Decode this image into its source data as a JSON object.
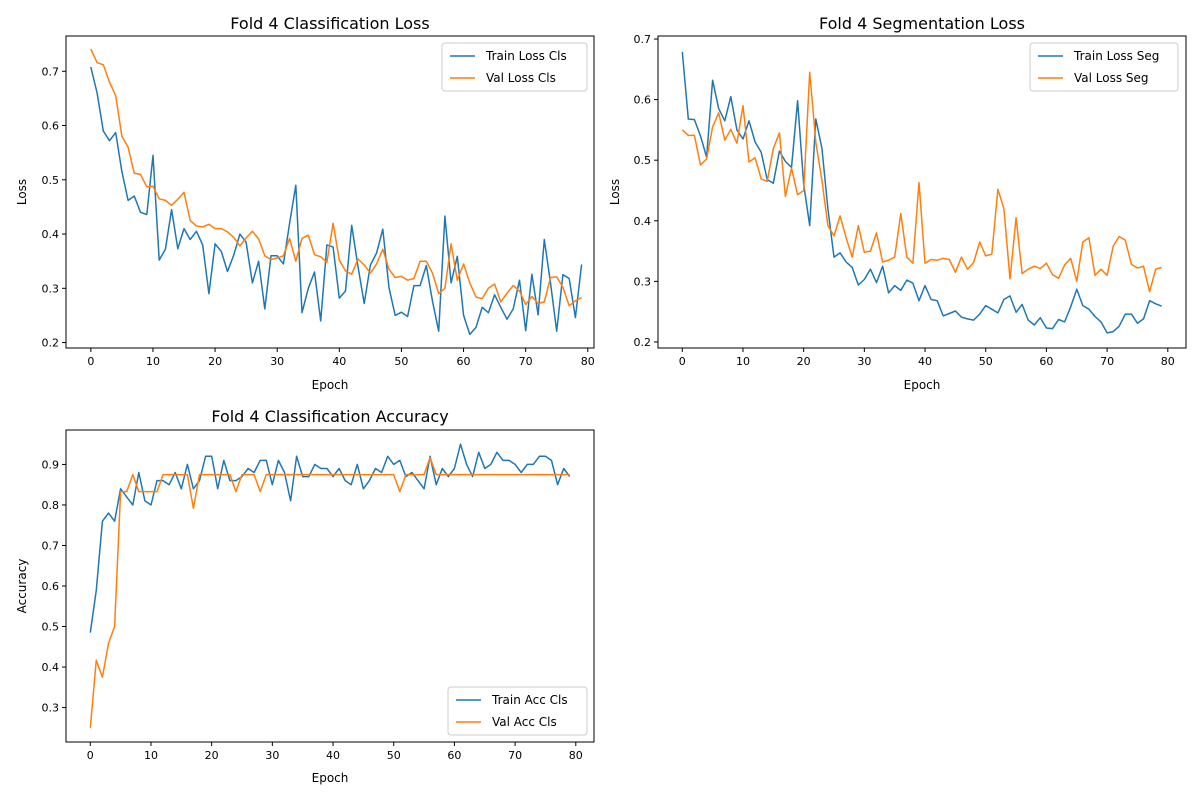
{
  "chart_data": [
    {
      "type": "line",
      "title": "Fold 4 Classification Loss",
      "xlabel": "Epoch",
      "ylabel": "Loss",
      "xlim": [
        -4,
        81
      ],
      "ylim": [
        0.19,
        0.765
      ],
      "xticks": [
        0,
        10,
        20,
        30,
        40,
        50,
        60,
        70,
        80
      ],
      "yticks": [
        0.2,
        0.3,
        0.4,
        0.5,
        0.6,
        0.7
      ],
      "ytick_format": "1",
      "grid": false,
      "legend_position": "upper right",
      "series": [
        {
          "name": "Train Loss Cls",
          "color": "#1f77b4",
          "values": [
            0.708,
            0.66,
            0.59,
            0.572,
            0.587,
            0.515,
            0.462,
            0.47,
            0.44,
            0.436,
            0.545,
            0.352,
            0.372,
            0.445,
            0.373,
            0.41,
            0.39,
            0.405,
            0.38,
            0.29,
            0.382,
            0.368,
            0.331,
            0.361,
            0.4,
            0.385,
            0.31,
            0.35,
            0.262,
            0.36,
            0.36,
            0.345,
            0.42,
            0.49,
            0.255,
            0.3,
            0.33,
            0.24,
            0.38,
            0.376,
            0.282,
            0.295,
            0.416,
            0.34,
            0.272,
            0.343,
            0.365,
            0.409,
            0.301,
            0.25,
            0.256,
            0.248,
            0.305,
            0.305,
            0.342,
            0.276,
            0.221,
            0.433,
            0.31,
            0.359,
            0.25,
            0.215,
            0.228,
            0.265,
            0.255,
            0.288,
            0.265,
            0.243,
            0.262,
            0.315,
            0.222,
            0.326,
            0.251,
            0.39,
            0.31,
            0.221,
            0.325,
            0.318,
            0.246,
            0.344
          ]
        },
        {
          "name": "Val Loss Cls",
          "color": "#ff7f0e",
          "values": [
            0.741,
            0.716,
            0.712,
            0.68,
            0.655,
            0.58,
            0.56,
            0.512,
            0.51,
            0.487,
            0.488,
            0.465,
            0.462,
            0.453,
            0.464,
            0.477,
            0.425,
            0.415,
            0.413,
            0.418,
            0.41,
            0.41,
            0.404,
            0.394,
            0.378,
            0.393,
            0.405,
            0.391,
            0.36,
            0.353,
            0.356,
            0.36,
            0.392,
            0.35,
            0.392,
            0.398,
            0.362,
            0.358,
            0.348,
            0.42,
            0.352,
            0.332,
            0.326,
            0.354,
            0.343,
            0.328,
            0.345,
            0.372,
            0.335,
            0.32,
            0.322,
            0.315,
            0.318,
            0.35,
            0.35,
            0.328,
            0.29,
            0.3,
            0.382,
            0.315,
            0.345,
            0.31,
            0.284,
            0.281,
            0.3,
            0.308,
            0.275,
            0.291,
            0.305,
            0.295,
            0.27,
            0.285,
            0.272,
            0.275,
            0.32,
            0.321,
            0.302,
            0.268,
            0.277,
            0.283
          ]
        }
      ]
    },
    {
      "type": "line",
      "title": "Fold 4 Segmentation Loss",
      "xlabel": "Epoch",
      "ylabel": "Loss",
      "xlim": [
        -4,
        83
      ],
      "ylim": [
        0.19,
        0.705
      ],
      "xticks": [
        0,
        10,
        20,
        30,
        40,
        50,
        60,
        70,
        80
      ],
      "yticks": [
        0.2,
        0.3,
        0.4,
        0.5,
        0.6,
        0.7
      ],
      "ytick_format": "1",
      "grid": false,
      "legend_position": "upper right",
      "series": [
        {
          "name": "Train Loss Seg",
          "color": "#1f77b4",
          "values": [
            0.679,
            0.568,
            0.567,
            0.54,
            0.505,
            0.632,
            0.585,
            0.565,
            0.605,
            0.55,
            0.535,
            0.565,
            0.53,
            0.513,
            0.468,
            0.462,
            0.515,
            0.498,
            0.488,
            0.598,
            0.46,
            0.392,
            0.568,
            0.52,
            0.42,
            0.34,
            0.347,
            0.332,
            0.323,
            0.294,
            0.303,
            0.32,
            0.298,
            0.325,
            0.281,
            0.293,
            0.285,
            0.302,
            0.297,
            0.268,
            0.293,
            0.27,
            0.268,
            0.243,
            0.247,
            0.251,
            0.241,
            0.238,
            0.236,
            0.246,
            0.26,
            0.254,
            0.248,
            0.27,
            0.276,
            0.249,
            0.262,
            0.236,
            0.228,
            0.24,
            0.223,
            0.222,
            0.237,
            0.233,
            0.258,
            0.287,
            0.26,
            0.254,
            0.242,
            0.233,
            0.215,
            0.217,
            0.226,
            0.246,
            0.246,
            0.231,
            0.238,
            0.268,
            0.263,
            0.259
          ]
        },
        {
          "name": "Val Loss Seg",
          "color": "#ff7f0e",
          "values": [
            0.55,
            0.541,
            0.541,
            0.492,
            0.502,
            0.555,
            0.578,
            0.533,
            0.551,
            0.528,
            0.59,
            0.497,
            0.504,
            0.469,
            0.465,
            0.519,
            0.545,
            0.44,
            0.487,
            0.443,
            0.45,
            0.645,
            0.53,
            0.467,
            0.392,
            0.375,
            0.408,
            0.372,
            0.34,
            0.392,
            0.348,
            0.35,
            0.38,
            0.332,
            0.335,
            0.34,
            0.412,
            0.34,
            0.33,
            0.463,
            0.33,
            0.336,
            0.335,
            0.338,
            0.336,
            0.315,
            0.34,
            0.32,
            0.331,
            0.365,
            0.342,
            0.345,
            0.452,
            0.42,
            0.304,
            0.405,
            0.313,
            0.32,
            0.325,
            0.321,
            0.33,
            0.311,
            0.305,
            0.327,
            0.338,
            0.3,
            0.365,
            0.372,
            0.31,
            0.32,
            0.31,
            0.358,
            0.374,
            0.368,
            0.328,
            0.322,
            0.325,
            0.283,
            0.32,
            0.323
          ]
        }
      ]
    },
    {
      "type": "line",
      "title": "Fold 4 Classification Accuracy",
      "xlabel": "Epoch",
      "ylabel": "Accuracy",
      "xlim": [
        -4,
        83
      ],
      "ylim": [
        0.215,
        0.985
      ],
      "xticks": [
        0,
        10,
        20,
        30,
        40,
        50,
        60,
        70,
        80
      ],
      "yticks": [
        0.3,
        0.4,
        0.5,
        0.6,
        0.7,
        0.8,
        0.9
      ],
      "ytick_format": "1",
      "grid": false,
      "legend_position": "lower right",
      "series": [
        {
          "name": "Train Acc Cls",
          "color": "#1f77b4",
          "values": [
            0.485,
            0.59,
            0.76,
            0.78,
            0.76,
            0.84,
            0.82,
            0.8,
            0.88,
            0.81,
            0.8,
            0.86,
            0.86,
            0.85,
            0.88,
            0.84,
            0.9,
            0.84,
            0.86,
            0.92,
            0.92,
            0.84,
            0.91,
            0.86,
            0.86,
            0.87,
            0.89,
            0.88,
            0.91,
            0.91,
            0.85,
            0.91,
            0.88,
            0.81,
            0.92,
            0.87,
            0.87,
            0.9,
            0.89,
            0.89,
            0.87,
            0.89,
            0.86,
            0.85,
            0.9,
            0.84,
            0.86,
            0.89,
            0.88,
            0.92,
            0.9,
            0.91,
            0.87,
            0.88,
            0.86,
            0.84,
            0.92,
            0.85,
            0.89,
            0.87,
            0.89,
            0.95,
            0.9,
            0.87,
            0.93,
            0.89,
            0.9,
            0.93,
            0.91,
            0.91,
            0.9,
            0.88,
            0.9,
            0.9,
            0.92,
            0.92,
            0.91,
            0.85,
            0.89,
            0.87
          ]
        },
        {
          "name": "Val Acc Cls",
          "color": "#ff7f0e",
          "values": [
            0.25,
            0.417,
            0.375,
            0.458,
            0.5,
            0.833,
            0.833,
            0.875,
            0.833,
            0.833,
            0.833,
            0.833,
            0.875,
            0.875,
            0.875,
            0.875,
            0.875,
            0.792,
            0.875,
            0.875,
            0.875,
            0.875,
            0.875,
            0.875,
            0.833,
            0.875,
            0.875,
            0.875,
            0.833,
            0.875,
            0.875,
            0.875,
            0.875,
            0.875,
            0.875,
            0.875,
            0.875,
            0.875,
            0.875,
            0.875,
            0.875,
            0.875,
            0.875,
            0.875,
            0.875,
            0.875,
            0.875,
            0.875,
            0.875,
            0.875,
            0.875,
            0.833,
            0.875,
            0.875,
            0.875,
            0.875,
            0.917,
            0.875,
            0.875,
            0.875,
            0.875,
            0.875,
            0.875,
            0.875,
            0.875,
            0.875,
            0.875,
            0.875,
            0.875,
            0.875,
            0.875,
            0.875,
            0.875,
            0.875,
            0.875,
            0.875,
            0.875,
            0.875,
            0.875,
            0.875
          ]
        }
      ]
    }
  ]
}
